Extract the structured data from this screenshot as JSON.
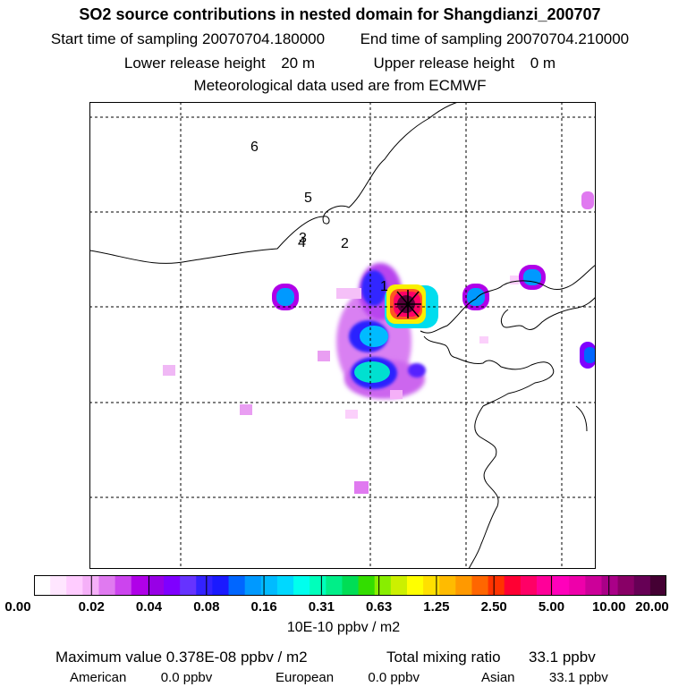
{
  "header": {
    "title": "SO2 source contributions in nested domain for Shangdianzi_200707",
    "start_label": "Start time of sampling",
    "start_value": "20070704.180000",
    "end_label": "End time of sampling",
    "end_value": "20070704.210000",
    "lower_label": "Lower release height",
    "lower_value": "20 m",
    "upper_label": "Upper release height",
    "upper_value": "0 m",
    "met_text": "Meteorological data used are from ECMWF"
  },
  "map": {
    "site_labels": [
      "1",
      "2",
      "3",
      "4",
      "5",
      "6"
    ],
    "colors": {
      "frame": "#000000",
      "coast": "#000000",
      "grid": "#000000",
      "peak": "#5a003c"
    }
  },
  "colorbar": {
    "tick_labels": [
      "0.00",
      "0.02",
      "0.04",
      "0.08",
      "0.16",
      "0.31",
      "0.63",
      "1.25",
      "2.50",
      "5.00",
      "10.00",
      "20.00"
    ],
    "colors": [
      "#ffffff",
      "#ffe6ff",
      "#ffccff",
      "#f5b0f8",
      "#e07af0",
      "#cc44ee",
      "#b000e8",
      "#9800e6",
      "#7f00ff",
      "#6633ff",
      "#3322ff",
      "#1a1aff",
      "#0066ff",
      "#0099ff",
      "#00bbff",
      "#00d8ff",
      "#00ffee",
      "#00ffbb",
      "#00ee88",
      "#00dd55",
      "#33dd00",
      "#88ee00",
      "#ccf000",
      "#ffff00",
      "#ffe000",
      "#ffbb00",
      "#ff9900",
      "#ff6600",
      "#ff3300",
      "#ff0033",
      "#ff0066",
      "#ff0099",
      "#ff00bb",
      "#ee00aa",
      "#cc0099",
      "#aa0088",
      "#880066",
      "#660055",
      "#440033"
    ],
    "units": "10E-10 ppbv / m2"
  },
  "summary": {
    "max_label": "Maximum value",
    "max_value": "0.378E-08 ppbv / m2",
    "total_label": "Total mixing ratio",
    "total_value": "33.1 ppbv",
    "regions": [
      {
        "name": "American",
        "value": "0.0 ppbv"
      },
      {
        "name": "European",
        "value": "0.0 ppbv"
      },
      {
        "name": "Asian",
        "value": "33.1 ppbv"
      }
    ]
  }
}
